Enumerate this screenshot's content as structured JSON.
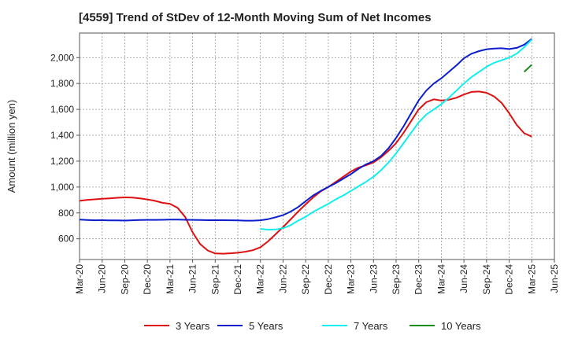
{
  "chart_data": {
    "type": "line",
    "title": "[4559]  Trend of StDev of 12-Month Moving Sum of Net Incomes",
    "ylabel": "Amount (million yen)",
    "xlabel": "",
    "x_ticks": [
      "Mar-20",
      "Jun-20",
      "Sep-20",
      "Dec-20",
      "Mar-21",
      "Jun-21",
      "Sep-21",
      "Dec-21",
      "Mar-22",
      "Jun-22",
      "Sep-22",
      "Dec-22",
      "Mar-23",
      "Jun-23",
      "Sep-23",
      "Dec-23",
      "Mar-24",
      "Jun-24",
      "Sep-24",
      "Dec-24",
      "Mar-25",
      "Jun-25"
    ],
    "y_ticks": [
      600,
      800,
      1000,
      1200,
      1400,
      1600,
      1800,
      2000
    ],
    "ylim": [
      440,
      2190
    ],
    "grid": true,
    "legend_position": "bottom",
    "x": [
      "Mar-20",
      "Apr-20",
      "May-20",
      "Jun-20",
      "Jul-20",
      "Aug-20",
      "Sep-20",
      "Oct-20",
      "Nov-20",
      "Dec-20",
      "Jan-21",
      "Feb-21",
      "Mar-21",
      "Apr-21",
      "May-21",
      "Jun-21",
      "Jul-21",
      "Aug-21",
      "Sep-21",
      "Oct-21",
      "Nov-21",
      "Dec-21",
      "Jan-22",
      "Feb-22",
      "Mar-22",
      "Apr-22",
      "May-22",
      "Jun-22",
      "Jul-22",
      "Aug-22",
      "Sep-22",
      "Oct-22",
      "Nov-22",
      "Dec-22",
      "Jan-23",
      "Feb-23",
      "Mar-23",
      "Apr-23",
      "May-23",
      "Jun-23",
      "Jul-23",
      "Aug-23",
      "Sep-23",
      "Oct-23",
      "Nov-23",
      "Dec-23",
      "Jan-24",
      "Feb-24",
      "Mar-24",
      "Apr-24",
      "May-24",
      "Jun-24",
      "Jul-24",
      "Aug-24",
      "Sep-24",
      "Oct-24",
      "Nov-24",
      "Dec-24",
      "Jan-25",
      "Feb-25",
      "Mar-25"
    ],
    "series": [
      {
        "name": "3 Years",
        "color": "#dd1111",
        "values": [
          893,
          900,
          905,
          910,
          913,
          917,
          920,
          918,
          912,
          904,
          893,
          878,
          870,
          840,
          770,
          650,
          560,
          510,
          487,
          485,
          488,
          492,
          500,
          512,
          535,
          580,
          635,
          690,
          750,
          810,
          866,
          920,
          966,
          1000,
          1040,
          1080,
          1120,
          1150,
          1168,
          1190,
          1230,
          1280,
          1340,
          1420,
          1510,
          1600,
          1655,
          1678,
          1668,
          1675,
          1690,
          1715,
          1735,
          1738,
          1728,
          1700,
          1650,
          1570,
          1480,
          1415,
          1390
        ]
      },
      {
        "name": "5 Years",
        "color": "#0a1ecc",
        "values": [
          748,
          745,
          743,
          744,
          742,
          742,
          741,
          743,
          745,
          746,
          746,
          747,
          748,
          748,
          747,
          746,
          745,
          744,
          744,
          744,
          743,
          742,
          740,
          740,
          743,
          752,
          766,
          783,
          810,
          845,
          890,
          935,
          970,
          1000,
          1030,
          1065,
          1100,
          1140,
          1175,
          1200,
          1240,
          1300,
          1380,
          1470,
          1570,
          1670,
          1745,
          1800,
          1840,
          1890,
          1940,
          1995,
          2030,
          2050,
          2065,
          2070,
          2072,
          2066,
          2075,
          2100,
          2145
        ]
      },
      {
        "name": "7 Years",
        "color": "#11eeee",
        "values": [
          null,
          null,
          null,
          null,
          null,
          null,
          null,
          null,
          null,
          null,
          null,
          null,
          null,
          null,
          null,
          null,
          null,
          null,
          null,
          null,
          null,
          null,
          null,
          null,
          677,
          670,
          672,
          682,
          705,
          740,
          770,
          808,
          840,
          870,
          905,
          935,
          970,
          1005,
          1040,
          1080,
          1130,
          1190,
          1260,
          1340,
          1420,
          1500,
          1560,
          1600,
          1640,
          1690,
          1745,
          1800,
          1850,
          1890,
          1930,
          1960,
          1980,
          2000,
          2030,
          2080,
          2140
        ]
      },
      {
        "name": "10 Years",
        "color": "#1a8a1a",
        "values": [
          null,
          null,
          null,
          null,
          null,
          null,
          null,
          null,
          null,
          null,
          null,
          null,
          null,
          null,
          null,
          null,
          null,
          null,
          null,
          null,
          null,
          null,
          null,
          null,
          null,
          null,
          null,
          null,
          null,
          null,
          null,
          null,
          null,
          null,
          null,
          null,
          null,
          null,
          null,
          null,
          null,
          null,
          null,
          null,
          null,
          null,
          null,
          null,
          null,
          null,
          null,
          null,
          null,
          null,
          null,
          null,
          null,
          null,
          null,
          1890,
          1945
        ]
      }
    ]
  }
}
